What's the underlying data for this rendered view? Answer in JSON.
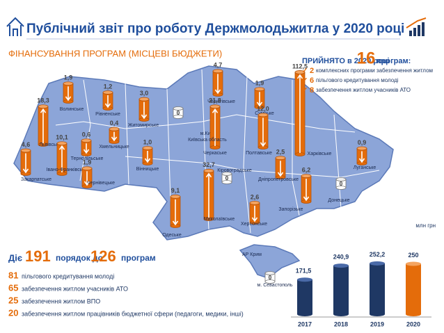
{
  "header": {
    "title": "Публічний звіт про роботу Держмолодьжитла  у 2020 році",
    "subtitle": "ФІНАНСУВАННЯ ПРОГРАМ (МІСЦЕВІ БЮДЖЕТИ)"
  },
  "accepted": {
    "lead": "ПРИЙНЯТО в 2020 році",
    "count": 16,
    "tail": "програм:",
    "items": [
      {
        "count": 2,
        "text": "комплексних програми забезпечення житлом"
      },
      {
        "count": 6,
        "text": "пільгового кредитування молоді"
      },
      {
        "count": 8,
        "text": "забезпечення  житлом учасників АТО"
      }
    ]
  },
  "active": {
    "lead": "Діє",
    "count": 191,
    "middle": "порядок до",
    "count2": 126,
    "tail": "програм",
    "items": [
      {
        "count": 81,
        "text": "пільгового кредитування молоді"
      },
      {
        "count": 65,
        "text": "забезпечення житлом учасників АТО"
      },
      {
        "count": 25,
        "text": "забезпечення житлом ВПО"
      },
      {
        "count": 20,
        "text": "забезпечення житлом працівників бюджетної сфери (педагоги, медики, інші)"
      }
    ]
  },
  "map": {
    "unit": "млн грн",
    "regions": {
      "names": [
        "Закарпатське",
        "Львівське",
        "Волинське",
        "Рівненське",
        "Житомирське",
        "м.Київ",
        "Чернігівське",
        "Сумське",
        "Тернопільське",
        "Хмельницьке",
        "Івано-Франківське",
        "Чернівецьке",
        "Вінницьке",
        "Черкаське",
        "Полтавське",
        "Кіровоградське",
        "Харківське",
        "Луганське",
        "Дніпропетровське",
        "Донецьке",
        "Запорізьке",
        "Одеське",
        "Миколаївське",
        "Херсонське",
        "АР Крим"
      ],
      "values": [
        4.6,
        18.3,
        1.9,
        1.2,
        3.0,
        0,
        4.7,
        1.9,
        0.6,
        0.4,
        10.1,
        1.9,
        1.0,
        21.8,
        12.0,
        0,
        112.5,
        0.9,
        2.5,
        0,
        6.2,
        9.1,
        32.7,
        2.6,
        0
      ],
      "value_labels": [
        "4,6",
        "18,3",
        "1,9",
        "1,2",
        "3,0",
        "0",
        "4,7",
        "1,9",
        "0,6",
        "0,4",
        "10,1",
        "1,9",
        "1,0",
        "21,8",
        "12,0",
        "0",
        "112,5",
        "0,9",
        "2,5",
        "0",
        "6,2",
        "9,1",
        "32,7",
        "2,6",
        "0"
      ],
      "directions": [
        "down",
        "up",
        "down",
        "down",
        "down",
        null,
        "down",
        "down",
        "down",
        "down",
        "up",
        "down",
        "down",
        "up",
        "down",
        null,
        "up",
        "down",
        "down",
        null,
        "down",
        "down",
        "up",
        "down",
        null
      ]
    },
    "extra_labels": [
      "Київська область",
      "м. Севастополь"
    ]
  },
  "chart_data": {
    "type": "bar",
    "categories": [
      "2017",
      "2018",
      "2019",
      "2020"
    ],
    "values": [
      171.5,
      240.9,
      252.2,
      250
    ],
    "value_labels": [
      "171,5",
      "240,9",
      "252,2",
      "250"
    ],
    "colors": [
      "#1f3864",
      "#1f3864",
      "#1f3864",
      "#e46c0a"
    ]
  }
}
